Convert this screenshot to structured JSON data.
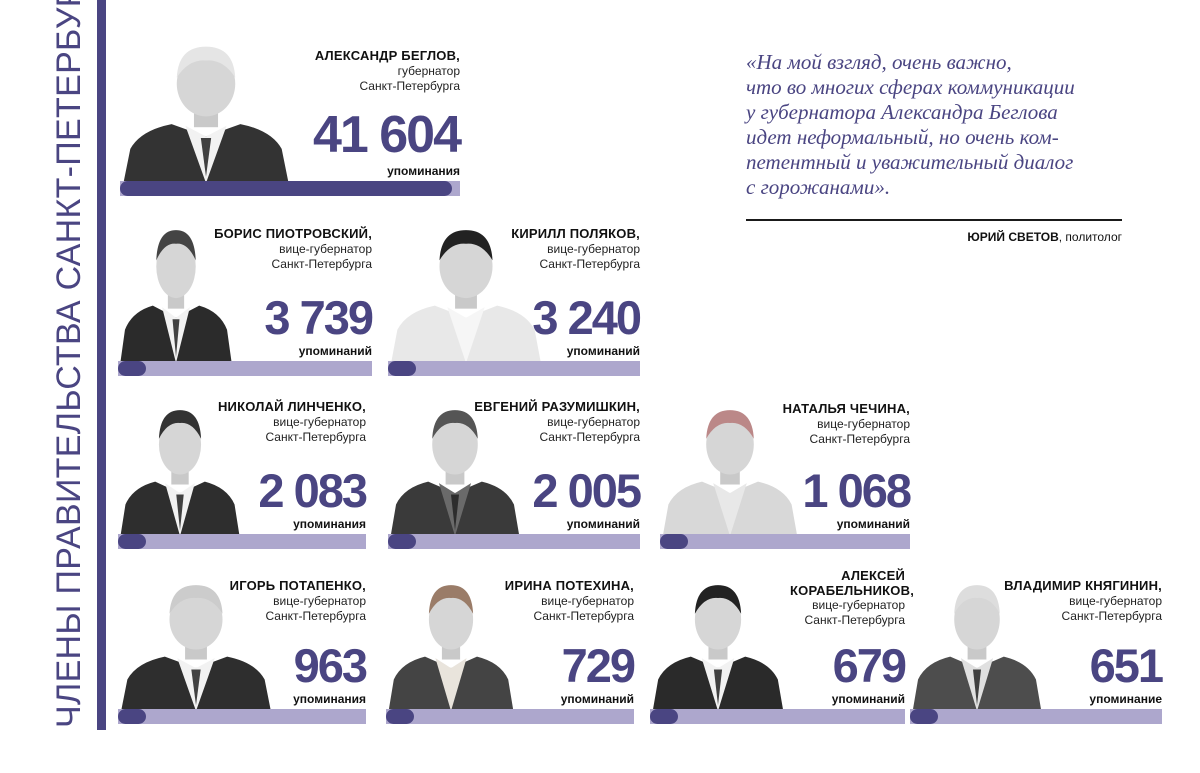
{
  "vertical_title": "ЧЛЕНЫ ПРАВИТЕЛЬСТВА САНКТ-ПЕТЕРБУРГА",
  "quote": {
    "lines": [
      "«На мой взгляд, очень важно,",
      "что во многих сферах коммуникации",
      "у губернатора Александра Беглова",
      "идет неформальный, но очень ком-",
      "петентный и уважительный диалог",
      "с горожанами».",
      ""
    ],
    "author_name": "ЮРИЙ СВЕТОВ",
    "author_role": ", политолог"
  },
  "colors": {
    "accent": "#4a4582",
    "track": "#ada7cd"
  },
  "chart_data": {
    "type": "bar",
    "categories": [
      "АЛЕКСАНДР БЕГЛОВ",
      "БОРИС ПИОТРОВСКИЙ",
      "КИРИЛЛ ПОЛЯКОВ",
      "НИКОЛАЙ ЛИНЧЕНКО",
      "ЕВГЕНИЙ РАЗУМИШКИН",
      "НАТАЛЬЯ ЧЕЧИНА",
      "ИГОРЬ ПОТАПЕНКО",
      "ИРИНА ПОТЕХИНА",
      "АЛЕКСЕЙ КОРАБЕЛЬНИКОВ",
      "ВЛАДИМИР КНЯГИНИН"
    ],
    "values": [
      41604,
      3739,
      3240,
      2083,
      2005,
      1068,
      963,
      729,
      679,
      651
    ],
    "people": [
      {
        "name": "АЛЕКСАНДР БЕГЛОВ,",
        "role": [
          "губернатор",
          "Санкт-Петербурга"
        ],
        "value_label": "41 604",
        "unit": "упоминания"
      },
      {
        "name": "БОРИС ПИОТРОВСКИЙ,",
        "role": [
          "вице-губернатор",
          "Санкт-Петербурга"
        ],
        "value_label": "3 739",
        "unit": "упоминаний"
      },
      {
        "name": "КИРИЛЛ ПОЛЯКОВ,",
        "role": [
          "вице-губернатор",
          "Санкт-Петербурга"
        ],
        "value_label": "3 240",
        "unit": "упоминаний"
      },
      {
        "name": "НИКОЛАЙ ЛИНЧЕНКО,",
        "role": [
          "вице-губернатор",
          "Санкт-Петербурга"
        ],
        "value_label": "2 083",
        "unit": "упоминания"
      },
      {
        "name": "ЕВГЕНИЙ РАЗУМИШКИН,",
        "role": [
          "вице-губернатор",
          "Санкт-Петербурга"
        ],
        "value_label": "2 005",
        "unit": "упоминаний"
      },
      {
        "name": "НАТАЛЬЯ ЧЕЧИНА,",
        "role": [
          "вице-губернатор",
          "Санкт-Петербурга"
        ],
        "value_label": "1 068",
        "unit": "упоминаний"
      },
      {
        "name": "ИГОРЬ ПОТАПЕНКО,",
        "role": [
          "вице-губернатор",
          "Санкт-Петербурга"
        ],
        "value_label": "963",
        "unit": "упоминания"
      },
      {
        "name": "ИРИНА ПОТЕХИНА,",
        "role": [
          "вице-губернатор",
          "Санкт-Петербурга"
        ],
        "value_label": "729",
        "unit": "упоминаний"
      },
      {
        "name": "АЛЕКСЕЙ КОРАБЕЛЬНИКОВ,",
        "role": [
          "вице-губернатор",
          "Санкт-Петербурга"
        ],
        "value_label": "679",
        "unit": "упоминаний"
      },
      {
        "name": "ВЛАДИМИР КНЯГИНИН,",
        "role": [
          "вице-губернатор",
          "Санкт-Петербурга"
        ],
        "value_label": "651",
        "unit": "упоминание"
      }
    ]
  }
}
